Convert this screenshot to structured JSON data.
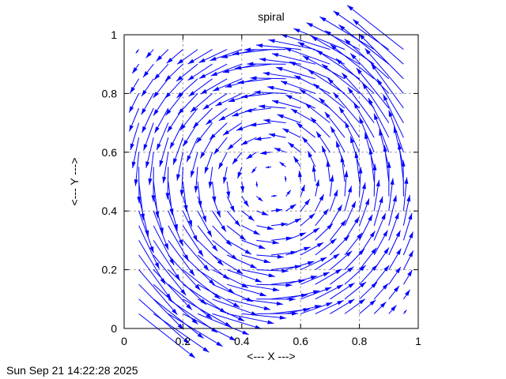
{
  "chart_data": {
    "type": "vector-field",
    "title": "spiral",
    "xlabel": "<--- X --->",
    "ylabel": "<--- Y --->",
    "xlim": [
      0,
      1
    ],
    "ylim": [
      0,
      1
    ],
    "xticks": [
      "0",
      "0.2",
      "0.4",
      "0.6",
      "0.8",
      "1"
    ],
    "yticks": [
      "0",
      "0.2",
      "0.4",
      "0.6",
      "0.8",
      "1"
    ],
    "grid": true,
    "rotation": "counterclockwise",
    "center": [
      0.5,
      0.5
    ],
    "sample_points": [
      0.05,
      0.1,
      0.15,
      0.2,
      0.25,
      0.3,
      0.35,
      0.4,
      0.45,
      0.5,
      0.55,
      0.6,
      0.65,
      0.7,
      0.75,
      0.8,
      0.85,
      0.9,
      0.95
    ],
    "vector_color": "#0000ff",
    "grid_color": "#a0a0a0"
  },
  "timestamp": "Sun Sep 21 14:22:28 2025"
}
